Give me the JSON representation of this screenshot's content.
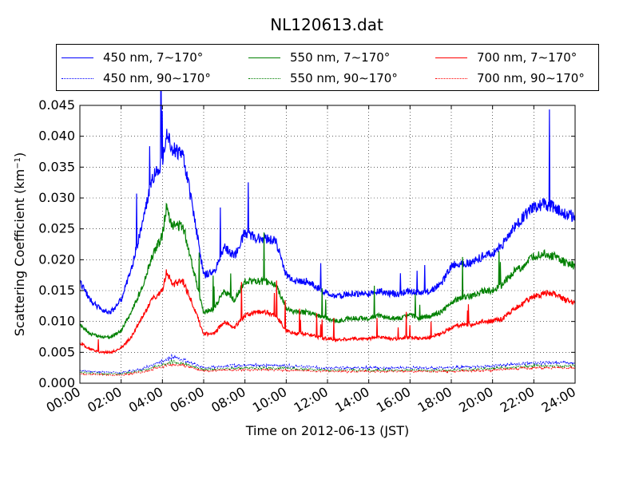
{
  "chart_data": {
    "type": "line",
    "title": "NL120613.dat",
    "xlabel": "Time on 2012-06-13 (JST)",
    "ylabel": "Scattering Coefficient (km",
    "ylabel_sup": "−1",
    "ylabel_close": ")",
    "xlim": [
      0,
      24
    ],
    "ylim": [
      0,
      0.045
    ],
    "grid": true,
    "legend_position": "top",
    "x_ticks": [
      0,
      2,
      4,
      6,
      8,
      10,
      12,
      14,
      16,
      18,
      20,
      22,
      24
    ],
    "x_tick_labels": [
      "00:00",
      "02:00",
      "04:00",
      "06:00",
      "08:00",
      "10:00",
      "12:00",
      "14:00",
      "16:00",
      "18:00",
      "20:00",
      "22:00",
      "24:00"
    ],
    "y_ticks": [
      0,
      0.005,
      0.01,
      0.015,
      0.02,
      0.025,
      0.03,
      0.035,
      0.04,
      0.045
    ],
    "y_tick_labels": [
      "0.000",
      "0.005",
      "0.010",
      "0.015",
      "0.020",
      "0.025",
      "0.030",
      "0.035",
      "0.040",
      "0.045"
    ],
    "series": [
      {
        "name": "450 nm, 7∼170°",
        "color": "#0000ff",
        "style": "solid",
        "x": [
          0,
          0.5,
          1,
          1.5,
          2,
          2.5,
          3,
          3.5,
          4,
          4.2,
          4.5,
          5,
          5.5,
          6,
          6.5,
          7,
          7.5,
          8,
          8.5,
          9,
          9.5,
          10,
          10.5,
          11,
          11.5,
          12,
          12.5,
          13,
          13.5,
          14,
          14.5,
          15,
          15.5,
          16,
          16.5,
          17,
          17.5,
          18,
          18.5,
          19,
          19.5,
          20,
          20.5,
          21,
          21.5,
          22,
          22.5,
          23,
          23.5,
          24
        ],
        "y": [
          0.0165,
          0.0135,
          0.012,
          0.0115,
          0.0135,
          0.0185,
          0.0255,
          0.033,
          0.036,
          0.041,
          0.038,
          0.037,
          0.028,
          0.0175,
          0.018,
          0.022,
          0.0205,
          0.0245,
          0.0235,
          0.0235,
          0.023,
          0.0175,
          0.0165,
          0.0165,
          0.0155,
          0.0145,
          0.014,
          0.0145,
          0.0145,
          0.0145,
          0.015,
          0.0145,
          0.0145,
          0.015,
          0.0145,
          0.015,
          0.016,
          0.019,
          0.0195,
          0.0195,
          0.0205,
          0.021,
          0.0225,
          0.025,
          0.027,
          0.0285,
          0.029,
          0.0285,
          0.0275,
          0.027
        ]
      },
      {
        "name": "550 nm, 7∼170°",
        "color": "#008000",
        "style": "solid",
        "x": [
          0,
          0.5,
          1,
          1.5,
          2,
          2.5,
          3,
          3.5,
          4,
          4.2,
          4.5,
          5,
          5.5,
          6,
          6.5,
          7,
          7.5,
          8,
          8.5,
          9,
          9.5,
          10,
          10.5,
          11,
          11.5,
          12,
          12.5,
          13,
          13.5,
          14,
          14.5,
          15,
          15.5,
          16,
          16.5,
          17,
          17.5,
          18,
          18.5,
          19,
          19.5,
          20,
          20.5,
          21,
          21.5,
          22,
          22.5,
          23,
          23.5,
          24
        ],
        "y": [
          0.0095,
          0.008,
          0.0075,
          0.0075,
          0.0085,
          0.0115,
          0.0155,
          0.0205,
          0.024,
          0.0285,
          0.0255,
          0.0255,
          0.0185,
          0.0115,
          0.012,
          0.015,
          0.0135,
          0.0165,
          0.0165,
          0.0165,
          0.016,
          0.012,
          0.0115,
          0.0115,
          0.011,
          0.0105,
          0.01,
          0.0105,
          0.0105,
          0.0105,
          0.011,
          0.0105,
          0.0105,
          0.011,
          0.0105,
          0.011,
          0.0115,
          0.013,
          0.014,
          0.014,
          0.015,
          0.015,
          0.016,
          0.018,
          0.019,
          0.0205,
          0.021,
          0.0205,
          0.0195,
          0.019
        ]
      },
      {
        "name": "700 nm, 7∼170°",
        "color": "#ff0000",
        "style": "solid",
        "x": [
          0,
          0.5,
          1,
          1.5,
          2,
          2.5,
          3,
          3.5,
          4,
          4.2,
          4.5,
          5,
          5.5,
          6,
          6.5,
          7,
          7.5,
          8,
          8.5,
          9,
          9.5,
          10,
          10.5,
          11,
          11.5,
          12,
          12.5,
          13,
          13.5,
          14,
          14.5,
          15,
          15.5,
          16,
          16.5,
          17,
          17.5,
          18,
          18.5,
          19,
          19.5,
          20,
          20.5,
          21,
          21.5,
          22,
          22.5,
          23,
          23.5,
          24
        ],
        "y": [
          0.0065,
          0.0055,
          0.005,
          0.005,
          0.0057,
          0.0075,
          0.0105,
          0.0135,
          0.015,
          0.018,
          0.016,
          0.0165,
          0.0125,
          0.008,
          0.008,
          0.01,
          0.009,
          0.011,
          0.0115,
          0.0115,
          0.011,
          0.0085,
          0.008,
          0.008,
          0.0075,
          0.0072,
          0.007,
          0.0072,
          0.0072,
          0.0072,
          0.0075,
          0.0072,
          0.0072,
          0.0075,
          0.0072,
          0.0075,
          0.008,
          0.009,
          0.0095,
          0.0095,
          0.01,
          0.01,
          0.0105,
          0.012,
          0.013,
          0.014,
          0.0145,
          0.0145,
          0.0135,
          0.013
        ]
      },
      {
        "name": "450 nm, 90∼170°",
        "color": "#0000ff",
        "style": "dotted",
        "x": [
          0,
          2,
          3,
          4,
          4.5,
          5,
          6,
          8,
          10,
          12,
          14,
          16,
          18,
          20,
          22,
          24
        ],
        "y": [
          0.002,
          0.0017,
          0.0023,
          0.0035,
          0.0043,
          0.0038,
          0.0025,
          0.003,
          0.0028,
          0.0025,
          0.0025,
          0.0025,
          0.0025,
          0.0028,
          0.0033,
          0.0033
        ]
      },
      {
        "name": "550 nm, 90∼170°",
        "color": "#008000",
        "style": "dotted",
        "x": [
          0,
          2,
          3,
          4,
          4.5,
          5,
          6,
          8,
          10,
          12,
          14,
          16,
          18,
          20,
          22,
          24
        ],
        "y": [
          0.0017,
          0.0015,
          0.002,
          0.003,
          0.0035,
          0.0032,
          0.0022,
          0.0025,
          0.0024,
          0.0021,
          0.0021,
          0.0021,
          0.0021,
          0.0024,
          0.0028,
          0.0028
        ]
      },
      {
        "name": "700 nm, 90∼170°",
        "color": "#ff0000",
        "style": "dotted",
        "x": [
          0,
          2,
          3,
          4,
          4.5,
          5,
          6,
          8,
          10,
          12,
          14,
          16,
          18,
          20,
          22,
          24
        ],
        "y": [
          0.0015,
          0.0013,
          0.0018,
          0.0027,
          0.0031,
          0.0029,
          0.002,
          0.0022,
          0.0021,
          0.0019,
          0.0019,
          0.0019,
          0.0019,
          0.0021,
          0.0025,
          0.0025
        ]
      }
    ]
  }
}
